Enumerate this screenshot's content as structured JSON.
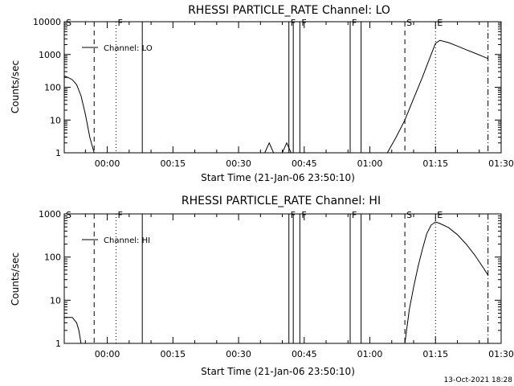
{
  "timestamp": "13-Oct-2021 18:28",
  "chart_data": [
    {
      "type": "line",
      "title": "RHESSI PARTICLE_RATE Channel: LO",
      "xlabel": "Start Time (21-Jan-06 23:50:10)",
      "ylabel": "Counts/sec",
      "y_scale": "log",
      "ylim": [
        1,
        10000
      ],
      "xlim": [
        "23:50:10",
        "01:30"
      ],
      "x_ticks": [
        "00:00",
        "00:15",
        "00:30",
        "00:45",
        "01:00",
        "01:15",
        "01:30"
      ],
      "y_ticks": [
        "1",
        "10",
        "100",
        "1000",
        "10000"
      ],
      "legend": "Channel: LO",
      "legend_position": "top-left",
      "series": [
        {
          "name": "Channel: LO",
          "x": [
            "23:50:10",
            "23:51",
            "23:52",
            "23:53",
            "23:54",
            "23:55",
            "23:56",
            "23:57",
            "00:36",
            "00:37",
            "00:38",
            "00:40",
            "00:41",
            "00:42",
            "01:04",
            "01:06",
            "01:08",
            "01:10",
            "01:12",
            "01:14",
            "01:15",
            "01:16",
            "01:18",
            "01:20",
            "01:22",
            "01:24",
            "01:26",
            "01:27"
          ],
          "y": [
            220,
            200,
            170,
            120,
            55,
            15,
            3,
            1,
            1,
            2,
            1,
            1,
            2,
            1,
            1,
            3,
            10,
            45,
            200,
            1000,
            2200,
            2700,
            2300,
            1800,
            1400,
            1100,
            850,
            750
          ]
        }
      ],
      "markers": [
        {
          "label": "S",
          "time": "23:50:10",
          "style": "dash"
        },
        {
          "label": "",
          "time": "23:57",
          "style": "dash"
        },
        {
          "label": "F",
          "time": "00:02",
          "style": "dot"
        },
        {
          "label": "",
          "time": "00:08",
          "style": "solid"
        },
        {
          "label": "F",
          "time": "00:41:30",
          "style": "solid"
        },
        {
          "label": "",
          "time": "00:42:30",
          "style": "solid"
        },
        {
          "label": "F",
          "time": "00:44",
          "style": "solid"
        },
        {
          "label": "F",
          "time": "00:55:30",
          "style": "solid"
        },
        {
          "label": "",
          "time": "00:58",
          "style": "solid"
        },
        {
          "label": "S",
          "time": "01:08",
          "style": "dash"
        },
        {
          "label": "E",
          "time": "01:15",
          "style": "dot"
        },
        {
          "label": "",
          "time": "01:27",
          "style": "dashdot"
        }
      ]
    },
    {
      "type": "line",
      "title": "RHESSI PARTICLE_RATE Channel: HI",
      "xlabel": "Start Time (21-Jan-06 23:50:10)",
      "ylabel": "Counts/sec",
      "y_scale": "log",
      "ylim": [
        1,
        1000
      ],
      "xlim": [
        "23:50:10",
        "01:30"
      ],
      "x_ticks": [
        "00:00",
        "00:15",
        "00:30",
        "00:45",
        "01:00",
        "01:15",
        "01:30"
      ],
      "y_ticks": [
        "1",
        "10",
        "100",
        "1000"
      ],
      "legend": "Channel: HI",
      "legend_position": "top-left",
      "series": [
        {
          "name": "Channel: HI",
          "x": [
            "23:50:10",
            "23:52",
            "23:53",
            "23:53:30",
            "23:54",
            "01:08",
            "01:09",
            "01:10",
            "01:11",
            "01:12",
            "01:13",
            "01:14",
            "01:15",
            "01:16",
            "01:18",
            "01:20",
            "01:22",
            "01:24",
            "01:26",
            "01:27"
          ],
          "y": [
            4,
            4,
            3,
            2,
            1,
            1,
            6,
            20,
            60,
            150,
            350,
            550,
            650,
            600,
            480,
            330,
            200,
            110,
            55,
            38
          ]
        }
      ],
      "markers": [
        {
          "label": "S",
          "time": "23:50:10",
          "style": "dash"
        },
        {
          "label": "",
          "time": "23:57",
          "style": "dash"
        },
        {
          "label": "F",
          "time": "00:02",
          "style": "dot"
        },
        {
          "label": "",
          "time": "00:08",
          "style": "solid"
        },
        {
          "label": "F",
          "time": "00:41:30",
          "style": "solid"
        },
        {
          "label": "",
          "time": "00:42:30",
          "style": "solid"
        },
        {
          "label": "F",
          "time": "00:44",
          "style": "solid"
        },
        {
          "label": "F",
          "time": "00:55:30",
          "style": "solid"
        },
        {
          "label": "",
          "time": "00:58",
          "style": "solid"
        },
        {
          "label": "S",
          "time": "01:08",
          "style": "dash"
        },
        {
          "label": "E",
          "time": "01:15",
          "style": "dot"
        },
        {
          "label": "",
          "time": "01:27",
          "style": "dashdot"
        }
      ]
    }
  ]
}
